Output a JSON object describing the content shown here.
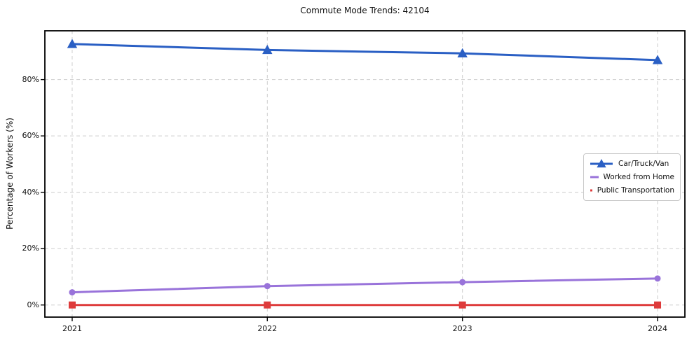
{
  "figure": {
    "background": "#ffffff",
    "spine_color": "#000000",
    "grid_color": "#cccccc",
    "text_color": "#111111"
  },
  "chart_data": {
    "type": "line",
    "title": "Commute Mode Trends: 42104",
    "xlabel": "",
    "ylabel": "Percentage of Workers (%)",
    "x": [
      2021,
      2022,
      2023,
      2024
    ],
    "x_tick_labels": [
      "2021",
      "2022",
      "2023",
      "2024"
    ],
    "y_ticks": [
      0,
      20,
      40,
      60,
      80
    ],
    "y_tick_labels": [
      "0%",
      "20%",
      "40%",
      "60%",
      "80%"
    ],
    "xlim": [
      2020.86,
      2024.14
    ],
    "ylim": [
      -4.3,
      97.3
    ],
    "grid": true,
    "grid_style": "dashed",
    "legend_position": "center-right",
    "series": [
      {
        "name": "Car/Truck/Van",
        "marker": "triangle-up",
        "color": "#2a5fc4",
        "values": [
          92.6,
          90.5,
          89.3,
          86.9
        ]
      },
      {
        "name": "Worked from Home",
        "marker": "circle",
        "color": "#9973da",
        "values": [
          4.5,
          6.7,
          8.1,
          9.4
        ]
      },
      {
        "name": "Public Transportation",
        "marker": "square",
        "color": "#de3b3b",
        "values": [
          0.0,
          0.0,
          0.0,
          0.0
        ]
      }
    ]
  }
}
